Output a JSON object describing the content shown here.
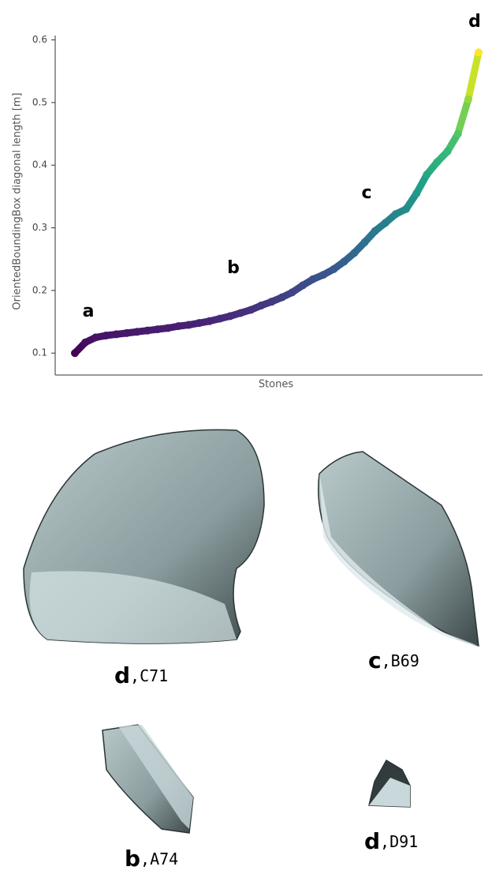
{
  "chart_data": {
    "type": "scatter",
    "ylabel": "OrientedBoundingBox diagonal length [m]",
    "xlabel": "Stones",
    "colormap": "viridis",
    "annotations": [
      "a",
      "b",
      "c",
      "d"
    ],
    "values": [
      0.1,
      0.117,
      0.125,
      0.128,
      0.13,
      0.132,
      0.134,
      0.136,
      0.138,
      0.14,
      0.143,
      0.145,
      0.148,
      0.151,
      0.155,
      0.159,
      0.164,
      0.169,
      0.176,
      0.182,
      0.189,
      0.197,
      0.208,
      0.218,
      0.225,
      0.234,
      0.246,
      0.26,
      0.277,
      0.295,
      0.308,
      0.322,
      0.33,
      0.355,
      0.385,
      0.405,
      0.422,
      0.45,
      0.505,
      0.58
    ],
    "ylim": [
      0.065,
      0.607
    ],
    "yticks": [
      0.1,
      0.2,
      0.3,
      0.4,
      0.5,
      0.6
    ]
  },
  "figures": [
    {
      "letter": "d",
      "code": ",C71"
    },
    {
      "letter": "c",
      "code": ",B69"
    },
    {
      "letter": "b",
      "code": ",A74"
    },
    {
      "letter": "d",
      "code": ",D91"
    }
  ]
}
